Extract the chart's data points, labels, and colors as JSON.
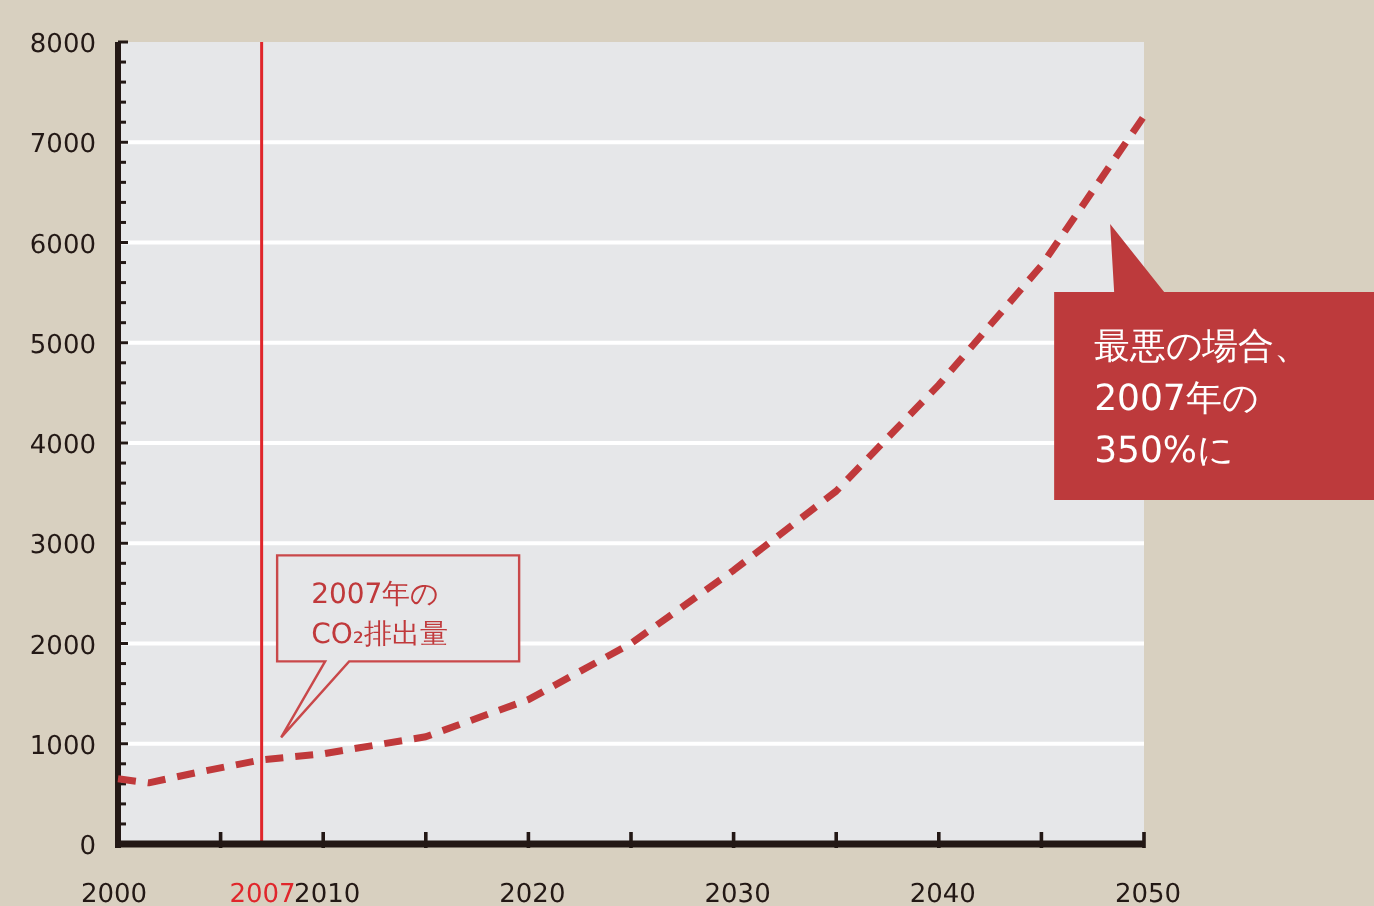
{
  "chart_data": {
    "type": "line",
    "x": [
      2000,
      2001.5,
      2004,
      2007,
      2010,
      2015,
      2020,
      2025,
      2030,
      2035,
      2040,
      2045,
      2050
    ],
    "series": [
      {
        "color": "#c0393b",
        "values": [
          650,
          610,
          720,
          840,
          900,
          1070,
          1440,
          2000,
          2730,
          3520,
          4580,
          5770,
          7260
        ]
      }
    ],
    "line_style": "dashed",
    "marker": "none",
    "xlim": [
      2000,
      2050
    ],
    "xticks": [
      2000,
      {
        "value": 2005,
        "label": null
      },
      2010,
      {
        "value": 2015,
        "label": null
      },
      2020,
      {
        "value": 2025,
        "label": null
      },
      2030,
      {
        "value": 2035,
        "label": null
      },
      2040,
      {
        "value": 2045,
        "label": null
      },
      2050
    ],
    "ylim": [
      0,
      8000
    ],
    "yticks": [
      0,
      {
        "value": 200,
        "label": null
      },
      {
        "value": 400,
        "label": null
      },
      {
        "value": 600,
        "label": null
      },
      {
        "value": 800,
        "label": null
      },
      1000,
      {
        "value": 1200,
        "label": null
      },
      {
        "value": 1400,
        "label": null
      },
      {
        "value": 1600,
        "label": null
      },
      {
        "value": 1800,
        "label": null
      },
      2000,
      {
        "value": 2200,
        "label": null
      },
      {
        "value": 2400,
        "label": null
      },
      {
        "value": 2600,
        "label": null
      },
      {
        "value": 2800,
        "label": null
      },
      3000,
      {
        "value": 3200,
        "label": null
      },
      {
        "value": 3400,
        "label": null
      },
      {
        "value": 3600,
        "label": null
      },
      {
        "value": 3800,
        "label": null
      },
      4000,
      {
        "value": 4200,
        "label": null
      },
      {
        "value": 4400,
        "label": null
      },
      {
        "value": 4600,
        "label": null
      },
      {
        "value": 4800,
        "label": null
      },
      5000,
      {
        "value": 5200,
        "label": null
      },
      {
        "value": 5400,
        "label": null
      },
      {
        "value": 5600,
        "label": null
      },
      {
        "value": 5800,
        "label": null
      },
      6000,
      {
        "value": 6200,
        "label": null
      },
      {
        "value": 6400,
        "label": null
      },
      {
        "value": 6600,
        "label": null
      },
      {
        "value": 6800,
        "label": null
      },
      7000,
      {
        "value": 7200,
        "label": null
      },
      {
        "value": 7400,
        "label": null
      },
      {
        "value": 7600,
        "label": null
      },
      {
        "value": 7800,
        "label": null
      },
      8000
    ],
    "grid": "y",
    "ref_lines": [
      {
        "axis": "x",
        "value": 2007,
        "label": "2007",
        "color": "#e0262b"
      }
    ],
    "annotations": [
      "2007年の\nCO₂排出量",
      "最悪の場合、\n2007年の\n350%に"
    ]
  }
}
